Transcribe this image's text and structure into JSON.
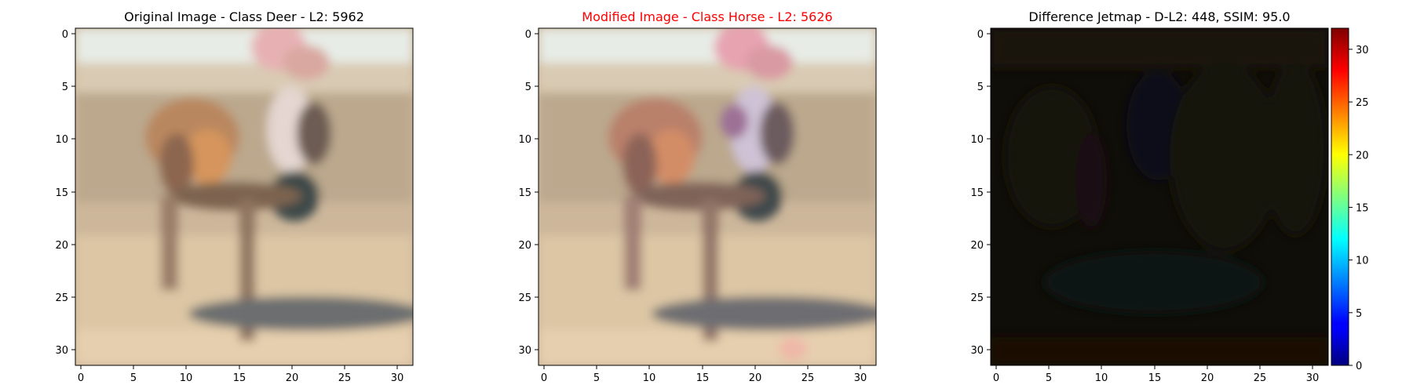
{
  "chart_data": [
    {
      "type": "heatmap",
      "title": "Original Image - Class Deer - L2: 5962",
      "title_color": "#000000",
      "xticks": [
        0,
        5,
        10,
        15,
        20,
        25,
        30
      ],
      "yticks": [
        0,
        5,
        10,
        15,
        20,
        25,
        30
      ],
      "xlim": [
        -0.5,
        31.5
      ],
      "ylim": [
        31.5,
        -0.5
      ],
      "grid": false
    },
    {
      "type": "heatmap",
      "title": "Modified Image - Class Horse - L2: 5626",
      "title_color": "#ff0000",
      "xticks": [
        0,
        5,
        10,
        15,
        20,
        25,
        30
      ],
      "yticks": [
        0,
        5,
        10,
        15,
        20,
        25,
        30
      ],
      "xlim": [
        -0.5,
        31.5
      ],
      "ylim": [
        31.5,
        -0.5
      ],
      "grid": false
    },
    {
      "type": "heatmap",
      "title": "Difference Jetmap - D-L2: 448, SSIM: 95.0",
      "title_color": "#000000",
      "xticks": [
        0,
        5,
        10,
        15,
        20,
        25,
        30
      ],
      "yticks": [
        0,
        5,
        10,
        15,
        20,
        25,
        30
      ],
      "xlim": [
        -0.5,
        31.5
      ],
      "ylim": [
        31.5,
        -0.5
      ],
      "colorbar": {
        "colormap": "jet",
        "range": [
          0,
          32
        ],
        "ticks": [
          0,
          5,
          10,
          15,
          20,
          25,
          30
        ]
      },
      "grid": false
    }
  ]
}
